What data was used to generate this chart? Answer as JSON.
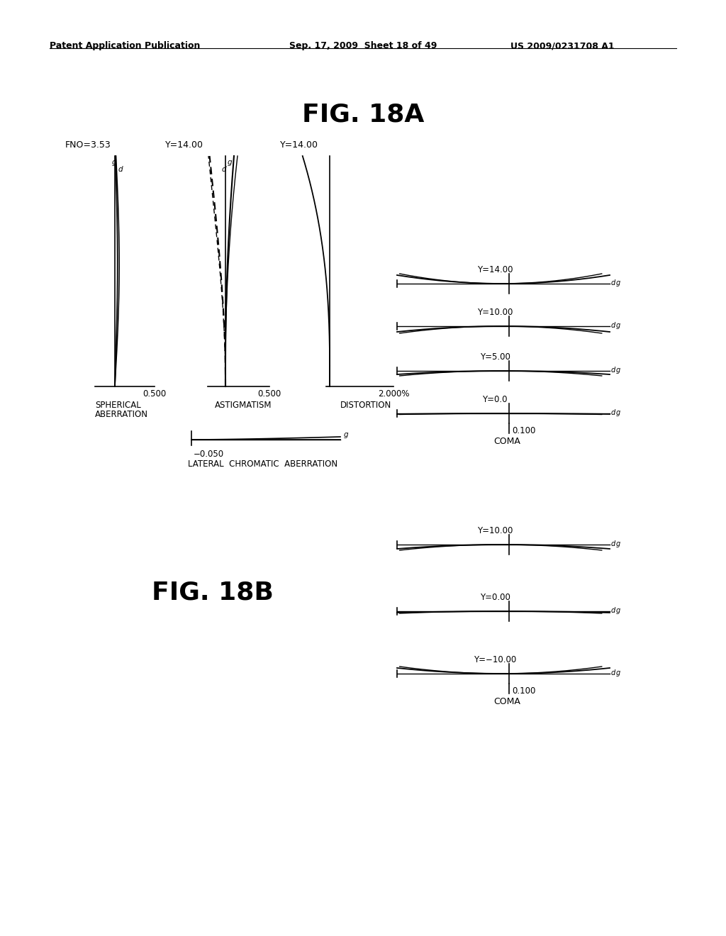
{
  "header_left": "Patent Application Publication",
  "header_mid": "Sep. 17, 2009  Sheet 18 of 49",
  "header_right": "US 2009/0231708 A1",
  "title_18A": "FIG. 18A",
  "title_18B": "FIG. 18B",
  "bg_color": "#ffffff"
}
